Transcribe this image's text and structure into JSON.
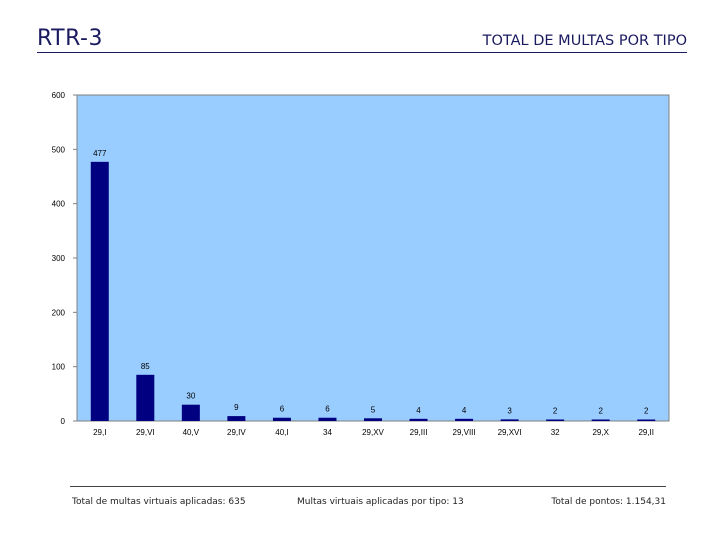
{
  "header": {
    "code": "RTR-3",
    "title": "TOTAL DE MULTAS POR TIPO"
  },
  "footer": {
    "total_multas": "Total de multas virtuais aplicadas: 635",
    "multas_por_tipo": "Multas virtuais aplicadas por tipo: 13",
    "total_pontos": "Total de pontos: 1.154,31"
  },
  "colors": {
    "plot_background": "#99ccff",
    "bar": "#000080",
    "axis": "#808080"
  },
  "chart_data": {
    "type": "bar",
    "title": "TOTAL DE MULTAS POR TIPO",
    "xlabel": "",
    "ylabel": "",
    "categories": [
      "29,I",
      "29,VI",
      "40,V",
      "29,IV",
      "40,I",
      "34",
      "29,XV",
      "29,III",
      "29,VIII",
      "29,XVI",
      "32",
      "29,X",
      "29,II"
    ],
    "values": [
      477,
      85,
      30,
      9,
      6,
      6,
      5,
      4,
      4,
      3,
      2,
      2,
      2
    ],
    "value_labels": [
      "477",
      "85",
      "30",
      "9",
      "6",
      "6",
      "5",
      "4",
      "4",
      "3",
      "2",
      "2",
      "2"
    ],
    "ylim": [
      0,
      600
    ],
    "yticks": [
      0,
      100,
      200,
      300,
      400,
      500,
      600
    ],
    "ytick_labels": [
      "0",
      "100",
      "200",
      "300",
      "400",
      "500",
      "600"
    ],
    "grid": false,
    "legend": false
  }
}
